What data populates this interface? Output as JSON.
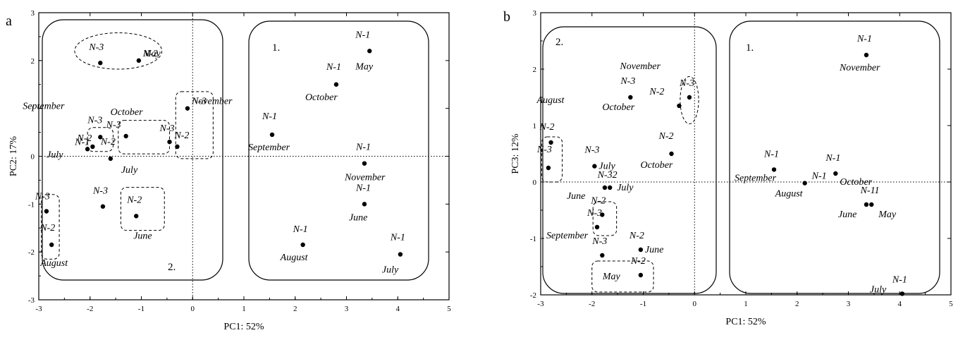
{
  "chart_data": [
    {
      "type": "scatter",
      "panel": "a",
      "xlabel": "PC1: 52%",
      "ylabel": "PC2: 17%",
      "xlim": [
        -3,
        5
      ],
      "ylim": [
        -3,
        3
      ],
      "xticks": [
        -3,
        -2,
        -1,
        0,
        1,
        2,
        3,
        4,
        5
      ],
      "yticks": [
        -3,
        -2,
        -1,
        0,
        1,
        2,
        3
      ],
      "reference_lines": {
        "x": 0,
        "y": 0,
        "style": "dotted"
      },
      "group_labels": [
        "1.",
        "2."
      ],
      "points": [
        {
          "x": 3.45,
          "y": 2.2,
          "name": "N-1",
          "month": "May"
        },
        {
          "x": 2.8,
          "y": 1.5,
          "name": "N-1",
          "month": "October"
        },
        {
          "x": 1.55,
          "y": 0.45,
          "name": "N-1",
          "month": "September"
        },
        {
          "x": 3.35,
          "y": -0.15,
          "name": "N-1",
          "month": "November"
        },
        {
          "x": 3.35,
          "y": -1.0,
          "name": "N-1",
          "month": "June"
        },
        {
          "x": 2.15,
          "y": -1.85,
          "name": "N-1",
          "month": "August"
        },
        {
          "x": 4.05,
          "y": -2.05,
          "name": "N-1",
          "month": "July"
        },
        {
          "x": -1.8,
          "y": 1.95,
          "name": "N-3",
          "month": ""
        },
        {
          "x": -1.05,
          "y": 2.0,
          "name": "N-2",
          "month": "May"
        },
        {
          "x": -0.1,
          "y": 1.0,
          "name": "N-3",
          "month": "November"
        },
        {
          "x": -0.45,
          "y": 0.3,
          "name": "N-3",
          "month": ""
        },
        {
          "x": -0.3,
          "y": 0.2,
          "name": "N-2",
          "month": ""
        },
        {
          "x": -1.3,
          "y": 0.42,
          "name": "N-3",
          "month": "October"
        },
        {
          "x": -1.8,
          "y": 0.4,
          "name": "N-3",
          "month": "September"
        },
        {
          "x": -1.95,
          "y": 0.2,
          "name": "N-2",
          "month": ""
        },
        {
          "x": -2.05,
          "y": 0.15,
          "name": "N-1",
          "month": "July"
        },
        {
          "x": -1.6,
          "y": -0.05,
          "name": "N-2",
          "month": "July"
        },
        {
          "x": -1.75,
          "y": -1.05,
          "name": "N-3",
          "month": ""
        },
        {
          "x": -1.1,
          "y": -1.25,
          "name": "N-2",
          "month": "June"
        },
        {
          "x": -2.85,
          "y": -1.15,
          "name": "N-3",
          "month": ""
        },
        {
          "x": -2.75,
          "y": -1.85,
          "name": "N-2",
          "month": "August"
        }
      ],
      "labels": [
        {
          "text": "N-1",
          "x": 3.45,
          "y": 2.2
        },
        {
          "text": "May",
          "x": 3.45,
          "y": 2.2
        },
        {
          "text": "N-1",
          "x": 2.8,
          "y": 1.5
        },
        {
          "text": "October",
          "x": 2.8,
          "y": 1.5
        },
        {
          "text": "N-1",
          "x": 1.55,
          "y": 0.45
        },
        {
          "text": "September",
          "x": 1.55,
          "y": 0.45
        },
        {
          "text": "N-1",
          "x": 3.35,
          "y": -0.15
        },
        {
          "text": "November",
          "x": 3.35,
          "y": -0.15
        },
        {
          "text": "N-1",
          "x": 3.35,
          "y": -1.0
        },
        {
          "text": "June",
          "x": 3.35,
          "y": -1.0
        },
        {
          "text": "N-1",
          "x": 2.15,
          "y": -1.85
        },
        {
          "text": "August",
          "x": 2.15,
          "y": -1.85
        },
        {
          "text": "N-1",
          "x": 4.05,
          "y": -2.05
        },
        {
          "text": "July",
          "x": 4.05,
          "y": -2.05
        },
        {
          "text": "N-3",
          "x": -1.8,
          "y": 1.95
        },
        {
          "text": "N-2",
          "x": -1.05,
          "y": 2.0
        },
        {
          "text": "May",
          "x": -1.05,
          "y": 2.0
        },
        {
          "text": "November",
          "x": -0.1,
          "y": 1.0
        },
        {
          "text": "N-3",
          "x": -0.1,
          "y": 1.0
        },
        {
          "text": "N-3",
          "x": -0.45,
          "y": 0.3
        },
        {
          "text": "N-2",
          "x": -0.3,
          "y": 0.2
        },
        {
          "text": "October",
          "x": -1.3,
          "y": 0.42
        },
        {
          "text": "N-3",
          "x": -1.3,
          "y": 0.42
        },
        {
          "text": "September",
          "x": -1.8,
          "y": 0.4
        },
        {
          "text": "N-3",
          "x": -1.8,
          "y": 0.4
        },
        {
          "text": "N-2",
          "x": -1.95,
          "y": 0.2
        },
        {
          "text": "N-1",
          "x": -2.05,
          "y": 0.15
        },
        {
          "text": "July",
          "x": -2.05,
          "y": 0.15
        },
        {
          "text": "N-2",
          "x": -1.6,
          "y": -0.05
        },
        {
          "text": "July",
          "x": -1.6,
          "y": -0.05
        },
        {
          "text": "N-3",
          "x": -1.75,
          "y": -1.05
        },
        {
          "text": "N-2",
          "x": -1.1,
          "y": -1.25
        },
        {
          "text": "June",
          "x": -1.1,
          "y": -1.25
        },
        {
          "text": "N-3",
          "x": -2.85,
          "y": -1.15
        },
        {
          "text": "N-2",
          "x": -2.75,
          "y": -1.85
        },
        {
          "text": "August",
          "x": -2.75,
          "y": -1.85
        }
      ]
    },
    {
      "type": "scatter",
      "panel": "b",
      "xlabel": "PC1: 52%",
      "ylabel": "PC3: 12%",
      "xlim": [
        -3,
        5
      ],
      "ylim": [
        -2,
        3
      ],
      "xticks": [
        -3,
        -2,
        -1,
        0,
        1,
        2,
        3,
        4,
        5
      ],
      "yticks": [
        -2,
        -1,
        0,
        1,
        2,
        3
      ],
      "reference_lines": {
        "x": 0,
        "y": 0,
        "style": "dotted"
      },
      "group_labels": [
        "2.",
        "1."
      ],
      "points": [
        {
          "x": 3.35,
          "y": 2.25,
          "name": "N-1",
          "month": "November"
        },
        {
          "x": 1.55,
          "y": 0.22,
          "name": "N-1",
          "month": "September"
        },
        {
          "x": 2.75,
          "y": 0.15,
          "name": "N-1",
          "month": "October"
        },
        {
          "x": 2.15,
          "y": -0.02,
          "name": "N-1",
          "month": "August"
        },
        {
          "x": 3.35,
          "y": -0.4,
          "name": "N-1",
          "month": "June"
        },
        {
          "x": 3.45,
          "y": -0.4,
          "name": "N-1",
          "month": "May"
        },
        {
          "x": 4.05,
          "y": -1.98,
          "name": "N-1",
          "month": "July"
        },
        {
          "x": -1.25,
          "y": 1.5,
          "name": "N-3",
          "month": "October"
        },
        {
          "x": -0.1,
          "y": 1.5,
          "name": "N-3",
          "month": "November"
        },
        {
          "x": -0.3,
          "y": 1.35,
          "name": "N-2",
          "month": ""
        },
        {
          "x": -0.45,
          "y": 0.5,
          "name": "N-2",
          "month": "October"
        },
        {
          "x": -2.8,
          "y": 0.7,
          "name": "N-2",
          "month": "August"
        },
        {
          "x": -2.85,
          "y": 0.25,
          "name": "N-3",
          "month": ""
        },
        {
          "x": -1.95,
          "y": 0.28,
          "name": "N-3",
          "month": "July"
        },
        {
          "x": -1.75,
          "y": -0.1,
          "name": "N-3",
          "month": "June"
        },
        {
          "x": -1.65,
          "y": -0.1,
          "name": "N-2",
          "month": "July"
        },
        {
          "x": -1.8,
          "y": -0.58,
          "name": "N-2",
          "month": ""
        },
        {
          "x": -1.9,
          "y": -0.8,
          "name": "N-3",
          "month": "September"
        },
        {
          "x": -1.05,
          "y": -1.2,
          "name": "N-2",
          "month": "June"
        },
        {
          "x": -1.8,
          "y": -1.3,
          "name": "N-3",
          "month": ""
        },
        {
          "x": -1.05,
          "y": -1.65,
          "name": "N-2",
          "month": "May"
        }
      ],
      "labels": [
        {
          "text": "N-1",
          "x": 3.35,
          "y": 2.25
        },
        {
          "text": "November",
          "x": 3.35,
          "y": 2.25
        },
        {
          "text": "N-1",
          "x": 1.55,
          "y": 0.22
        },
        {
          "text": "September",
          "x": 1.55,
          "y": 0.22
        },
        {
          "text": "N-1",
          "x": 2.75,
          "y": 0.15
        },
        {
          "text": "October",
          "x": 2.75,
          "y": 0.15
        },
        {
          "text": "N-1",
          "x": 2.15,
          "y": -0.02
        },
        {
          "text": "August",
          "x": 2.15,
          "y": -0.02
        },
        {
          "text": "N-11",
          "x": 3.4,
          "y": -0.4
        },
        {
          "text": "June",
          "x": 3.35,
          "y": -0.4
        },
        {
          "text": "May",
          "x": 3.45,
          "y": -0.4
        },
        {
          "text": "N-1",
          "x": 4.05,
          "y": -1.98
        },
        {
          "text": "July",
          "x": 4.05,
          "y": -1.98
        },
        {
          "text": "November",
          "x": -0.3,
          "y": 1.35
        },
        {
          "text": "N-3",
          "x": -0.1,
          "y": 1.5
        },
        {
          "text": "N-2",
          "x": -0.3,
          "y": 1.35
        },
        {
          "text": "N-3",
          "x": -1.25,
          "y": 1.5
        },
        {
          "text": "October",
          "x": -1.25,
          "y": 1.5
        },
        {
          "text": "N-2",
          "x": -0.45,
          "y": 0.5
        },
        {
          "text": "October",
          "x": -0.45,
          "y": 0.5
        },
        {
          "text": "August",
          "x": -2.8,
          "y": 0.7
        },
        {
          "text": "N-2",
          "x": -2.8,
          "y": 0.7
        },
        {
          "text": "N-3",
          "x": -2.85,
          "y": 0.25
        },
        {
          "text": "N-3",
          "x": -1.95,
          "y": 0.28
        },
        {
          "text": "July",
          "x": -1.95,
          "y": 0.28
        },
        {
          "text": "N-32",
          "x": -1.7,
          "y": -0.1
        },
        {
          "text": "June",
          "x": -1.75,
          "y": -0.1
        },
        {
          "text": "July",
          "x": -1.65,
          "y": -0.1
        },
        {
          "text": "N-2",
          "x": -1.8,
          "y": -0.58
        },
        {
          "text": "N-3",
          "x": -1.9,
          "y": -0.8
        },
        {
          "text": "September",
          "x": -1.9,
          "y": -0.8
        },
        {
          "text": "N-2",
          "x": -1.05,
          "y": -1.2
        },
        {
          "text": "June",
          "x": -1.05,
          "y": -1.2
        },
        {
          "text": "N-3",
          "x": -1.8,
          "y": -1.3
        },
        {
          "text": "N-2",
          "x": -1.05,
          "y": -1.65
        },
        {
          "text": "May",
          "x": -1.05,
          "y": -1.65
        }
      ]
    }
  ]
}
